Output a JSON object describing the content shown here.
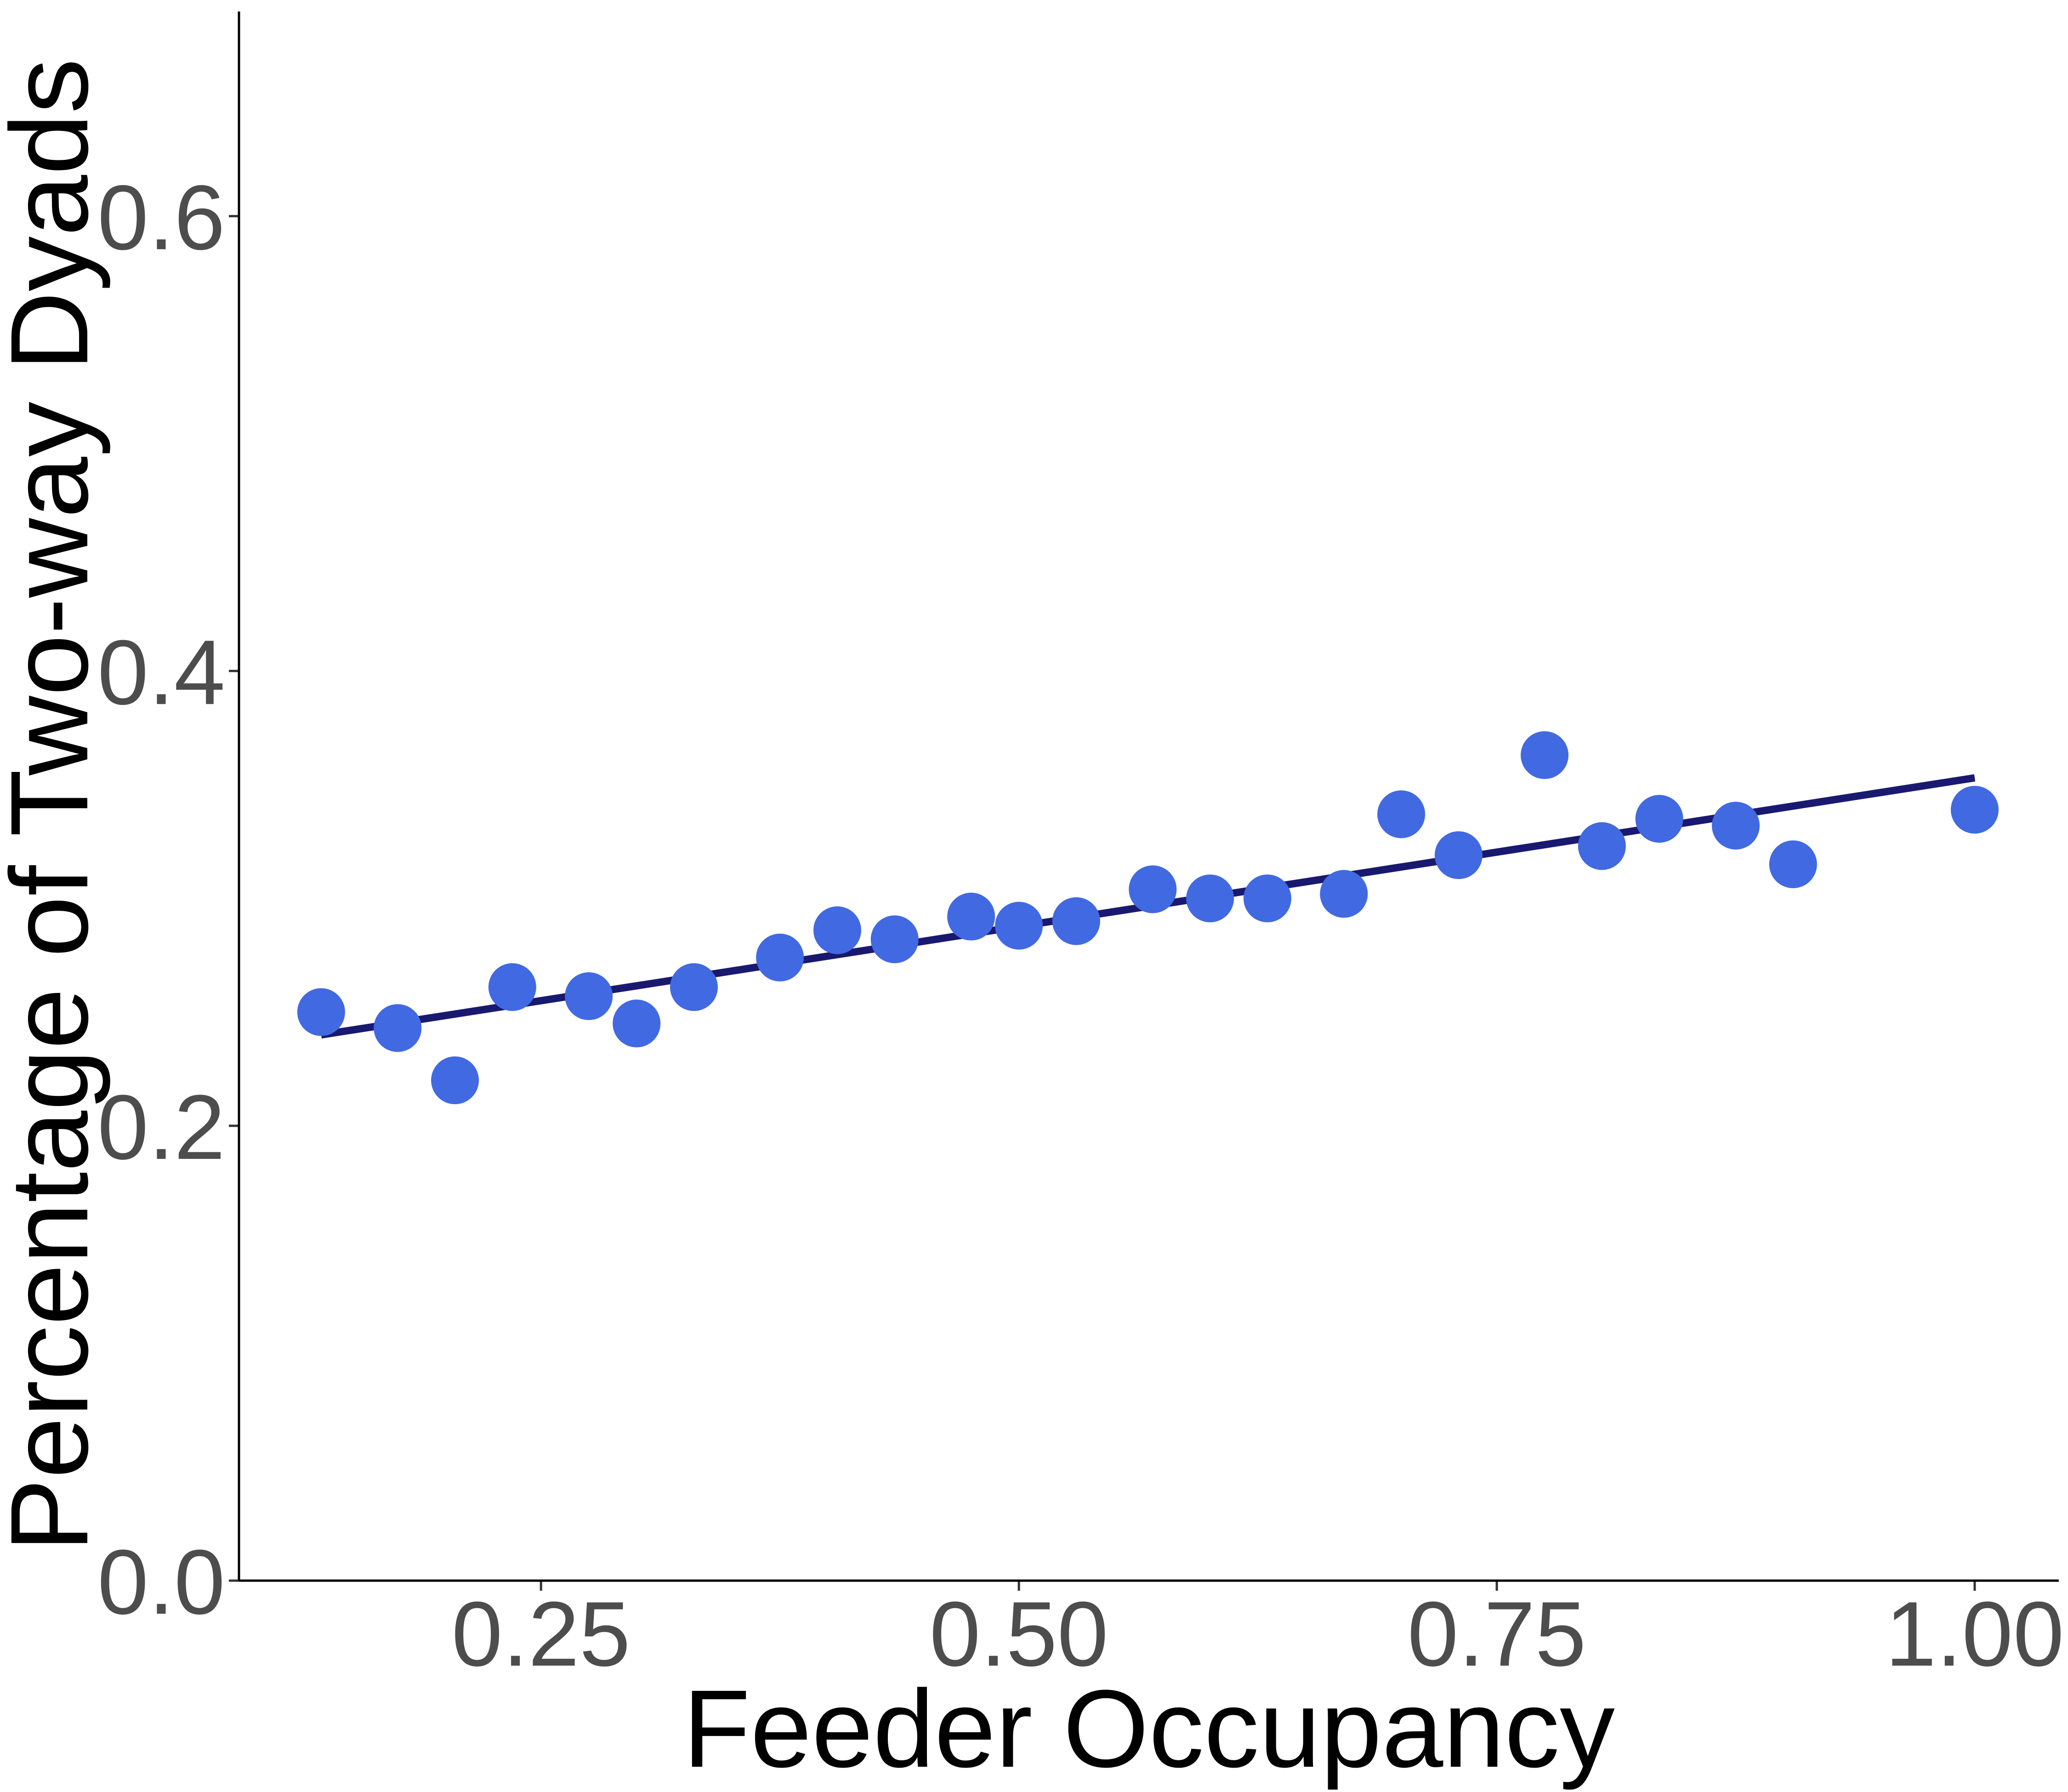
{
  "chart_data": {
    "type": "scatter",
    "xlabel": "Feeder Occupancy",
    "ylabel": "Percentage of Two-way Dyads",
    "xlim": [
      0.092,
      1.044
    ],
    "ylim": [
      0,
      0.69
    ],
    "x_ticks": [
      {
        "value": 0.25,
        "label": "0.25"
      },
      {
        "value": 0.5,
        "label": "0.50"
      },
      {
        "value": 0.75,
        "label": "0.75"
      },
      {
        "value": 1.0,
        "label": "1.00"
      }
    ],
    "y_ticks": [
      {
        "value": 0.0,
        "label": "0.0"
      },
      {
        "value": 0.2,
        "label": "0.2"
      },
      {
        "value": 0.4,
        "label": "0.4"
      },
      {
        "value": 0.6,
        "label": "0.6"
      }
    ],
    "grid": false,
    "points": {
      "x": [
        0.135,
        0.175,
        0.205,
        0.235,
        0.275,
        0.3,
        0.33,
        0.375,
        0.405,
        0.435,
        0.475,
        0.5,
        0.53,
        0.57,
        0.6,
        0.63,
        0.67,
        0.7,
        0.73,
        0.775,
        0.805,
        0.835,
        0.875,
        0.905,
        1.0
      ],
      "y": [
        0.25,
        0.243,
        0.22,
        0.261,
        0.257,
        0.245,
        0.261,
        0.274,
        0.286,
        0.282,
        0.292,
        0.288,
        0.29,
        0.304,
        0.3,
        0.3,
        0.302,
        0.337,
        0.319,
        0.363,
        0.323,
        0.335,
        0.332,
        0.315,
        0.339
      ]
    },
    "fit_line": {
      "x": [
        0.135,
        1.0
      ],
      "y": [
        0.24,
        0.353
      ]
    },
    "colors": {
      "points": "#4169e1",
      "fit_line": "#191970",
      "axis": "#000000",
      "tick_label": "#4d4d4d"
    }
  }
}
